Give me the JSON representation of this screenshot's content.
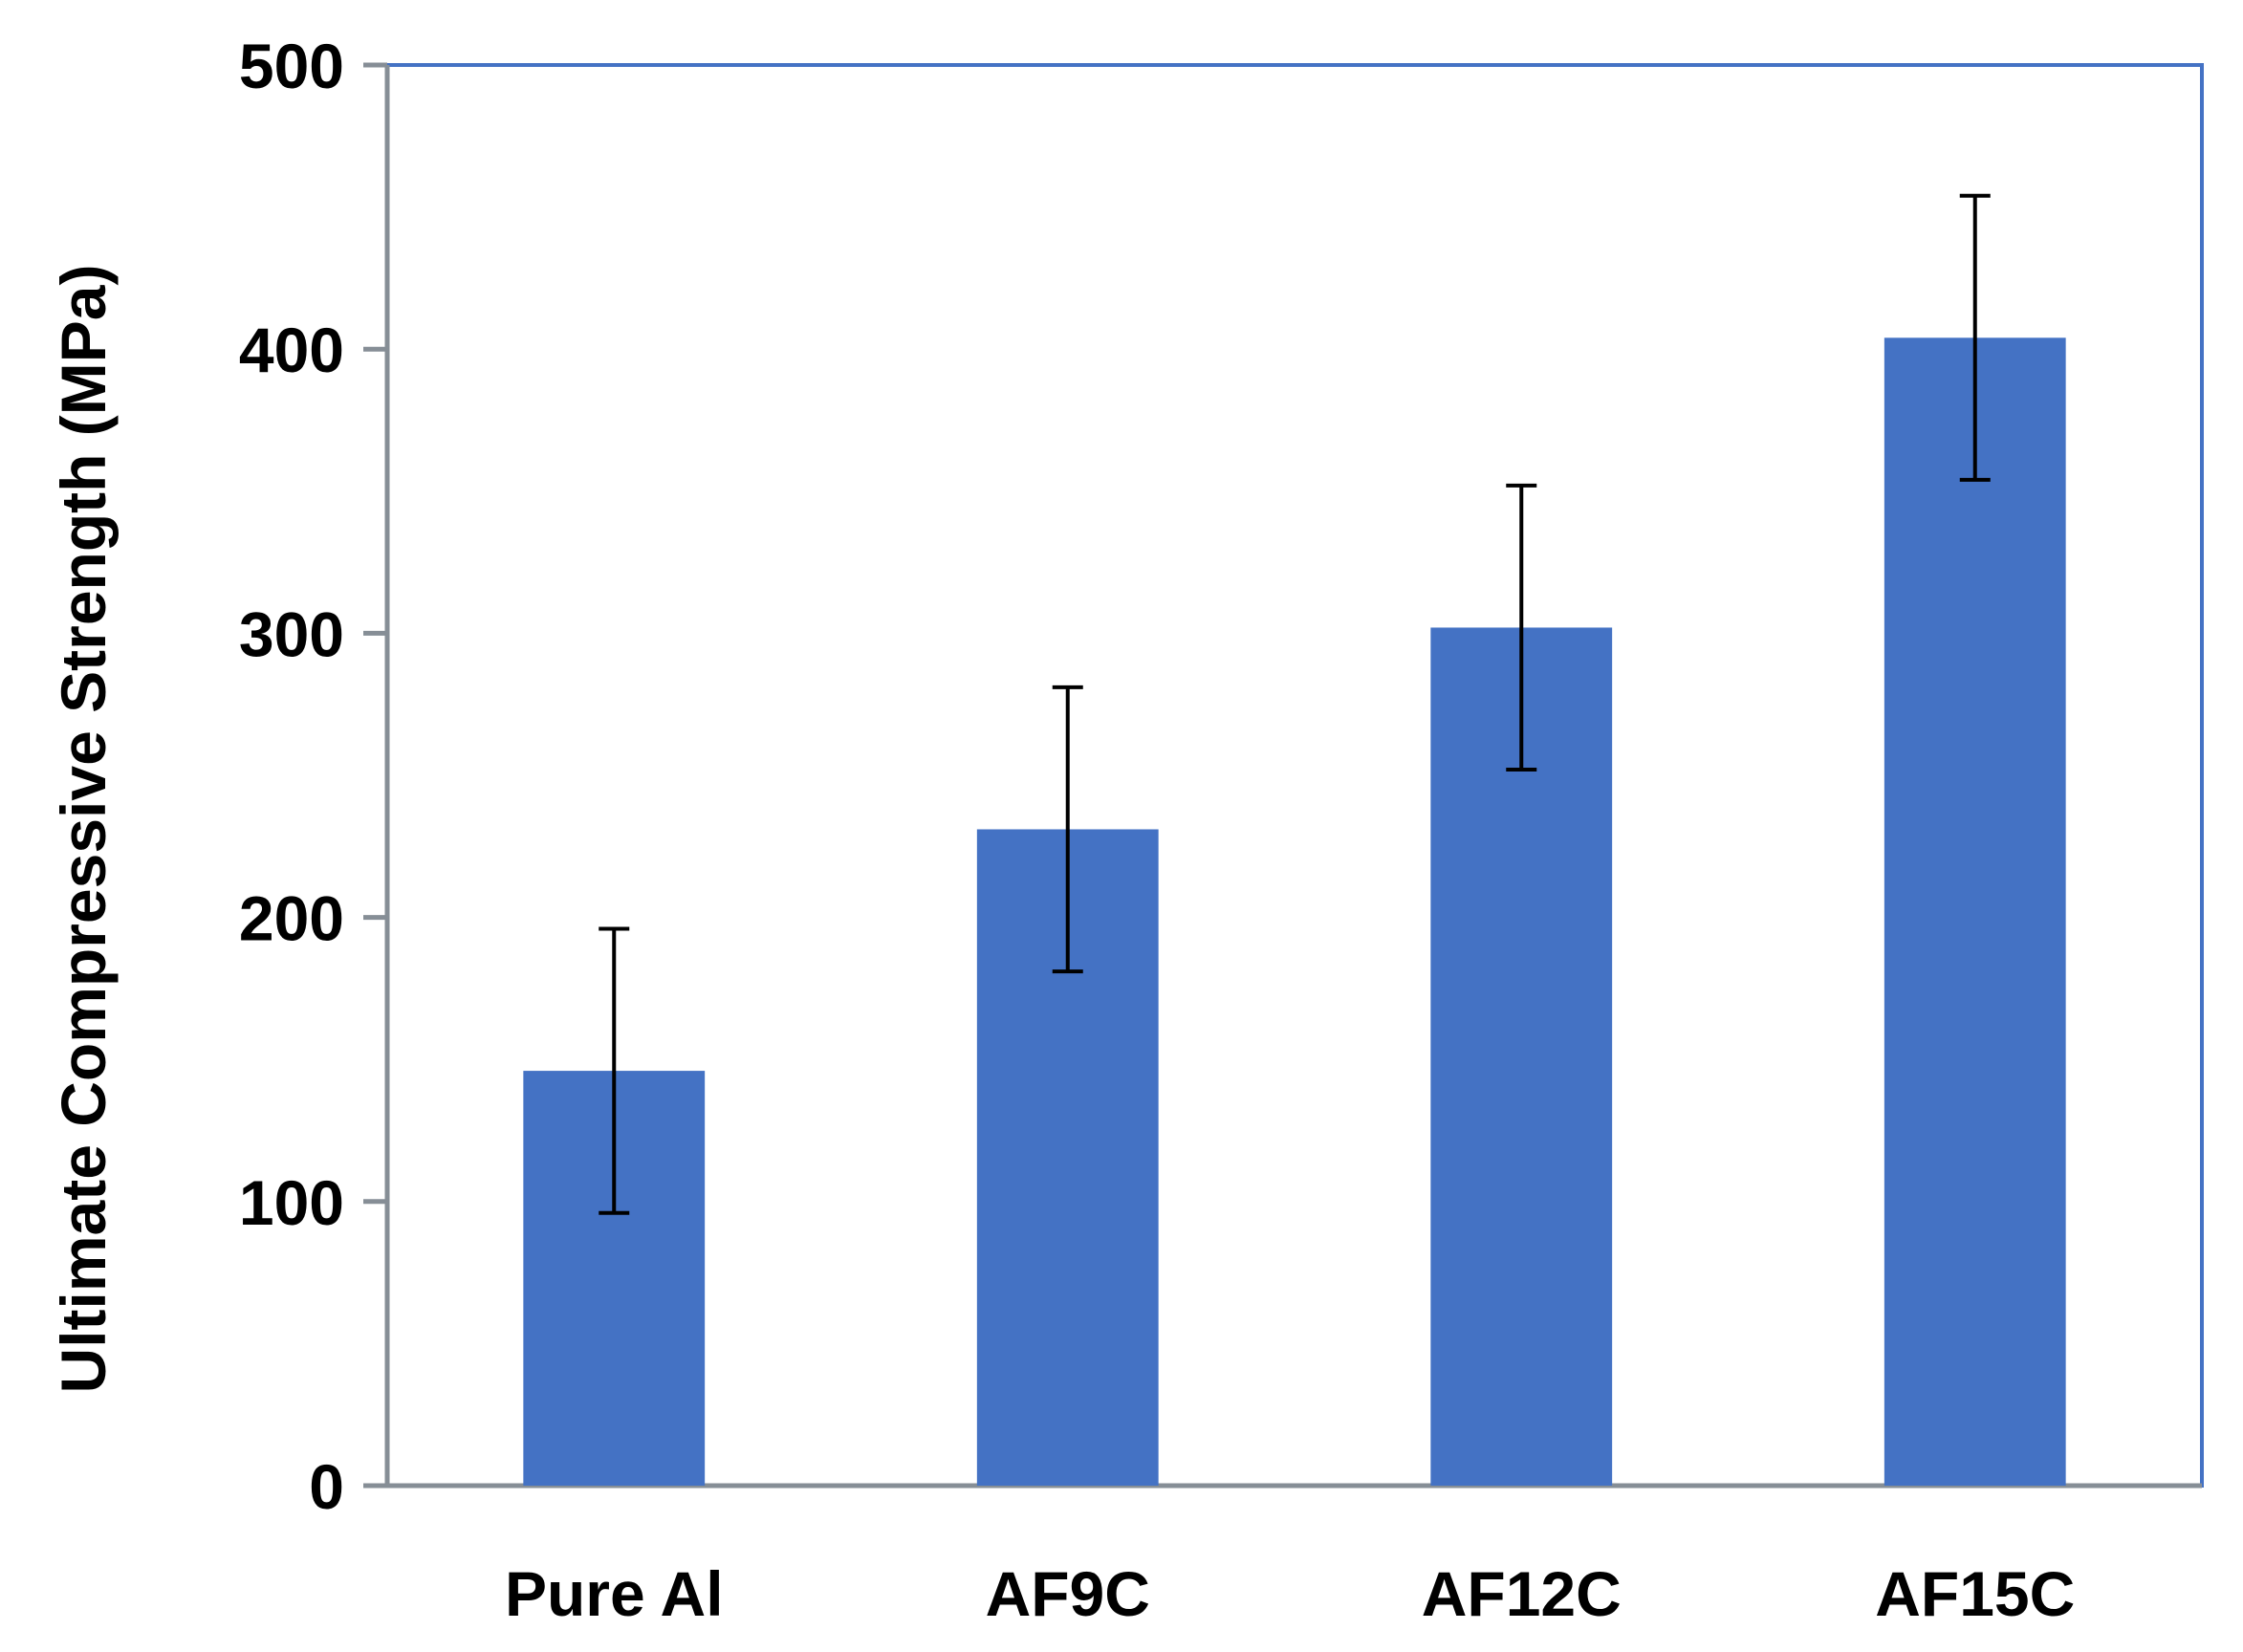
{
  "chart_data": {
    "type": "bar",
    "title": "",
    "xlabel": "",
    "ylabel": "Ultimate Compressive Strength (MPa)",
    "categories": [
      "Pure Al",
      "AF9C",
      "AF12C",
      "AF15C"
    ],
    "values": [
      146,
      231,
      302,
      404
    ],
    "error": [
      50,
      50,
      50,
      50
    ],
    "ylim": [
      0,
      500
    ],
    "yticks": [
      0,
      100,
      200,
      300,
      400,
      500
    ],
    "ytick_labels": [
      "0",
      "100",
      "200",
      "300",
      "400",
      "500"
    ],
    "grid": false,
    "legend": "none",
    "colors": {
      "bar": "#4472C4",
      "plot_border": "#4472C4",
      "axis": "#868E96",
      "error_bar": "#000000",
      "text": "#000000"
    }
  }
}
